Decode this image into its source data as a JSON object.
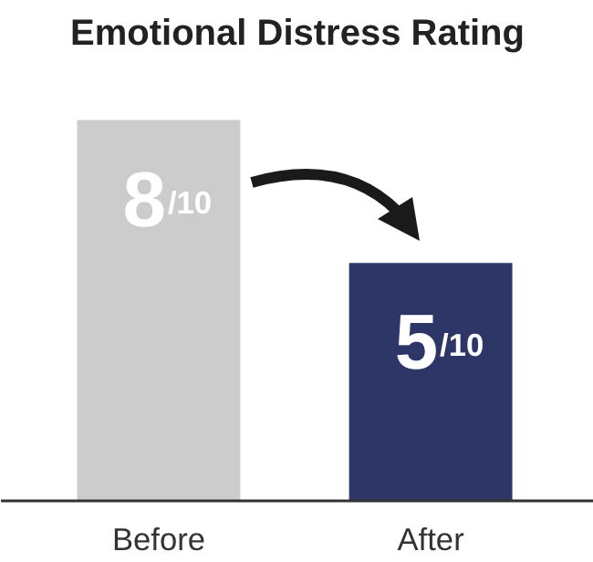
{
  "chart_data": {
    "type": "bar",
    "title": "Emotional Distress Rating",
    "categories": [
      "Before",
      "After"
    ],
    "values": [
      8,
      5
    ],
    "colors": [
      "#cccccc",
      "#2e3668"
    ],
    "data_labels": true,
    "annotations": [
      {
        "text": "/10",
        "x": "Before",
        "y": 8
      },
      {
        "text": "/10",
        "x": "After",
        "y": 5
      }
    ],
    "grid": false
  }
}
